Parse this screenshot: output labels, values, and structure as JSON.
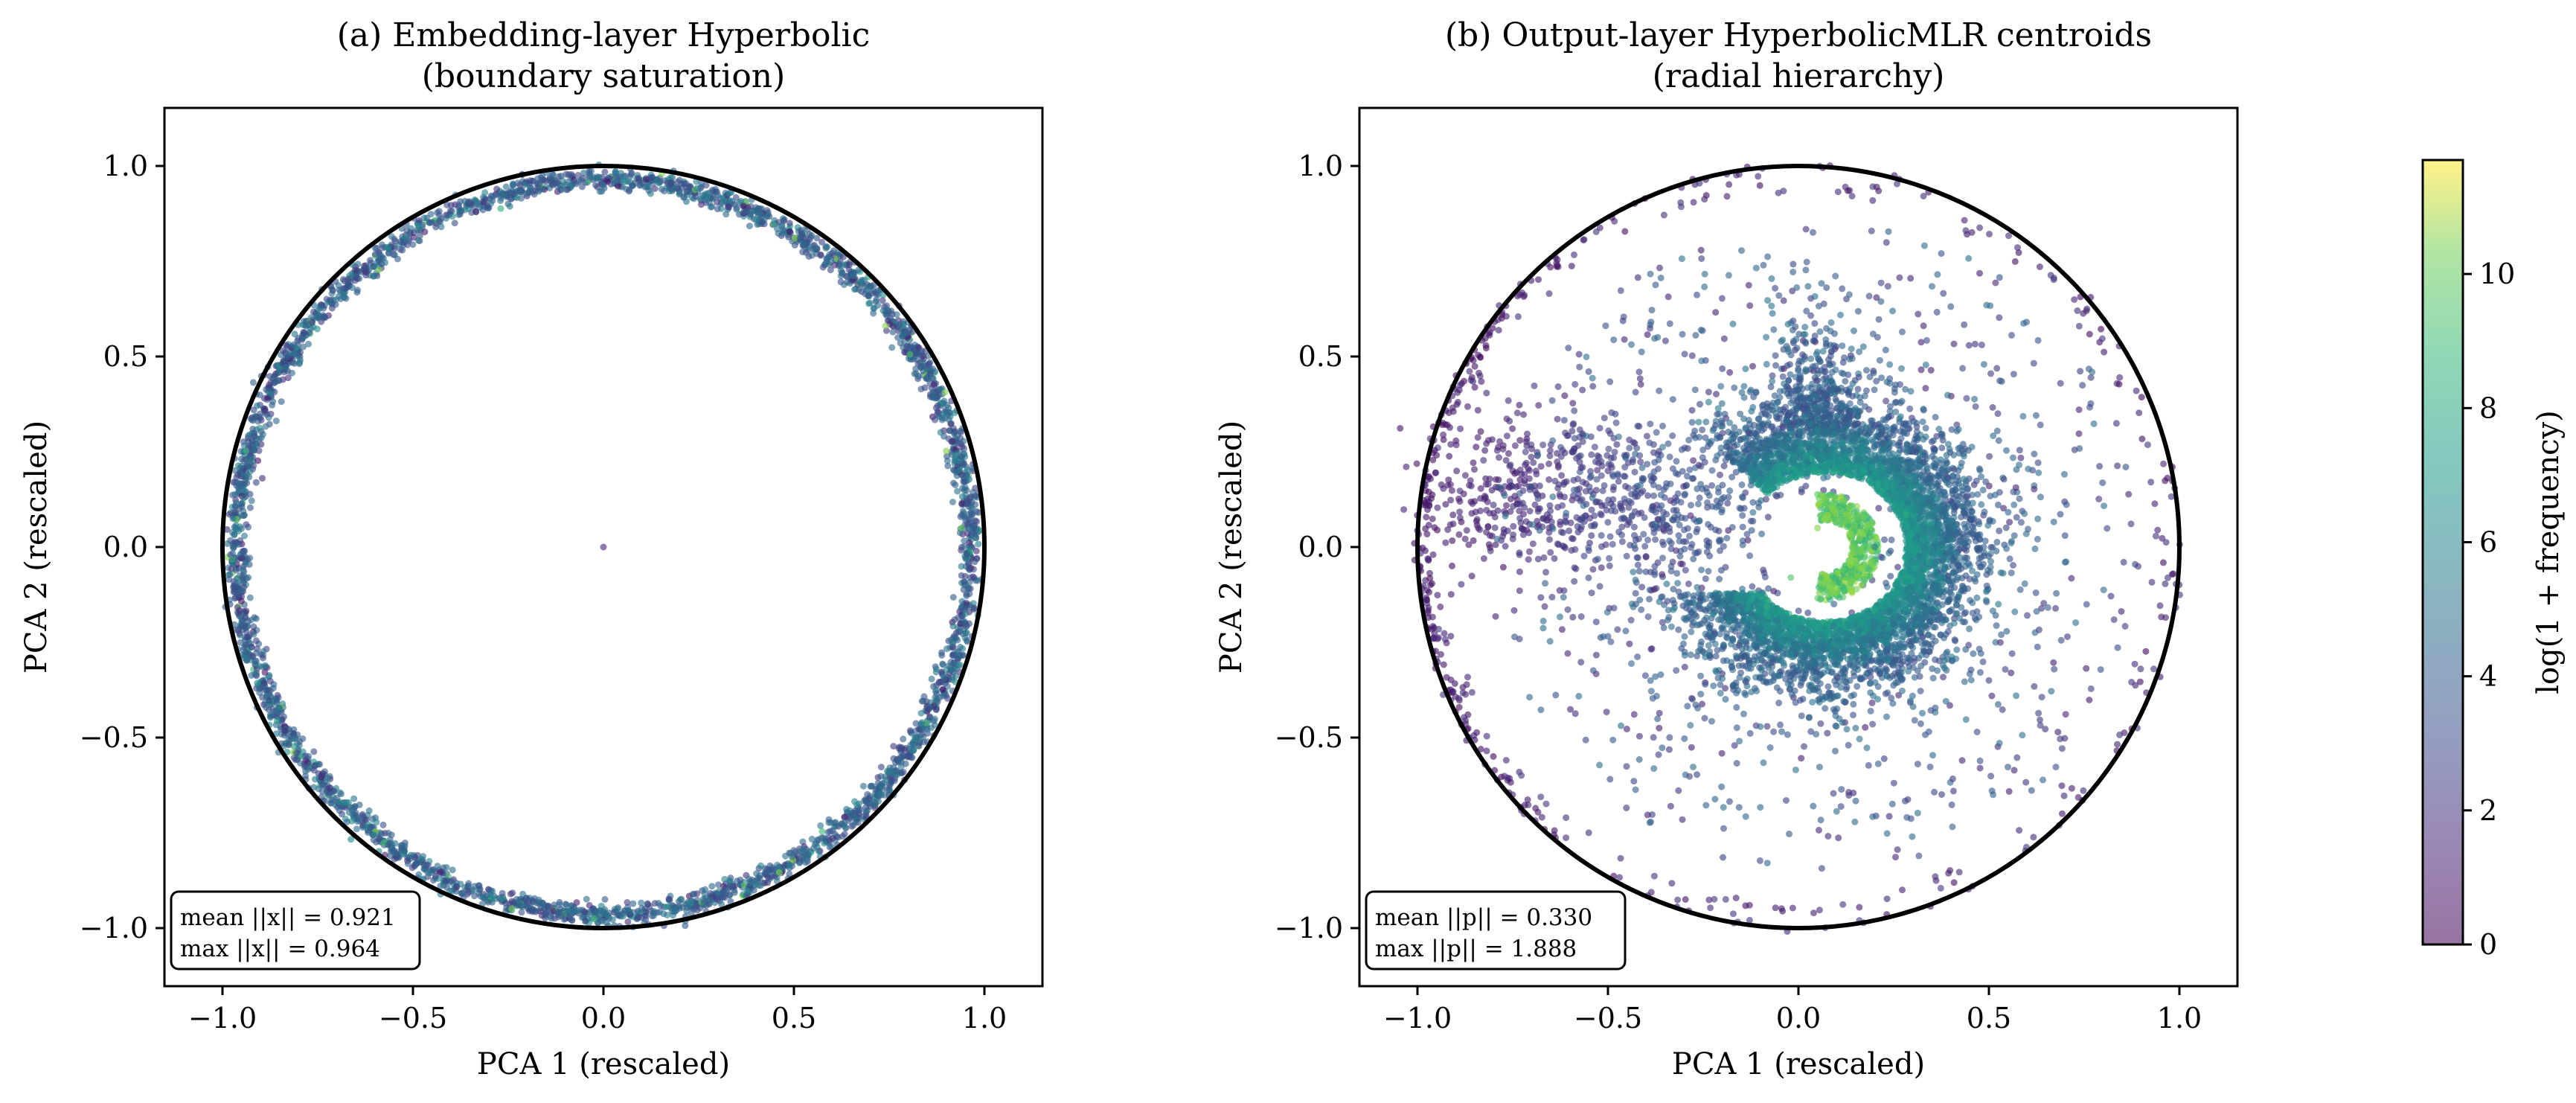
{
  "figure": {
    "colorbar": {
      "label": "log(1 + frequency)",
      "range": [
        0,
        11.7
      ],
      "ticks": [
        0,
        2,
        4,
        6,
        8,
        10
      ],
      "colormap": "viridis",
      "alpha": 0.55
    }
  },
  "chart_data": [
    {
      "type": "scatter",
      "title_line1": "(a) Embedding-layer Hyperbolic",
      "title_line2": "(boundary saturation)",
      "xlabel": "PCA 1 (rescaled)",
      "ylabel": "PCA 2 (rescaled)",
      "xlim": [
        -1.15,
        1.15
      ],
      "ylim": [
        -1.15,
        1.15
      ],
      "xticks": [
        -1.0,
        -0.5,
        0.0,
        0.5,
        1.0
      ],
      "yticks": [
        -1.0,
        -0.5,
        0.0,
        0.5,
        1.0
      ],
      "xtick_labels": [
        "−1.0",
        "−0.5",
        "0.0",
        "0.5",
        "1.0"
      ],
      "ytick_labels": [
        "−1.0",
        "−0.5",
        "0.0",
        "0.5",
        "1.0"
      ],
      "unit_circle": true,
      "stats": [
        "mean ||x|| = 0.921",
        "max ||x|| = 0.964"
      ],
      "distribution": "ring concentrated at radius ≈ 0.96 near boundary; single point at origin",
      "sample_points": [
        {
          "x": 0.0,
          "y": 0.0,
          "c": 1.5
        },
        {
          "x": 0.96,
          "y": 0.0,
          "c": 4.2
        },
        {
          "x": 0.0,
          "y": 0.95,
          "c": 4.0
        },
        {
          "x": -0.97,
          "y": 0.0,
          "c": 4.1
        },
        {
          "x": 0.0,
          "y": -0.96,
          "c": 4.3
        },
        {
          "x": 0.74,
          "y": 0.58,
          "c": 9.5
        },
        {
          "x": 0.94,
          "y": 0.05,
          "c": 9.0
        },
        {
          "x": 0.69,
          "y": -0.67,
          "c": 3.8
        },
        {
          "x": -0.69,
          "y": 0.67,
          "c": 4.4
        },
        {
          "x": -0.66,
          "y": -0.69,
          "c": 4.0
        }
      ]
    },
    {
      "type": "scatter",
      "title_line1": "(b) Output-layer HyperbolicMLR centroids",
      "title_line2": "(radial hierarchy)",
      "xlabel": "PCA 1 (rescaled)",
      "ylabel": "PCA 2 (rescaled)",
      "xlim": [
        -1.15,
        1.15
      ],
      "ylim": [
        -1.15,
        1.15
      ],
      "xticks": [
        -1.0,
        -0.5,
        0.0,
        0.5,
        1.0
      ],
      "yticks": [
        -1.0,
        -0.5,
        0.0,
        0.5,
        1.0
      ],
      "xtick_labels": [
        "−1.0",
        "−0.5",
        "0.0",
        "0.5",
        "1.0"
      ],
      "ytick_labels": [
        "−1.0",
        "−0.5",
        "0.0",
        "0.5",
        "1.0"
      ],
      "unit_circle": true,
      "stats": [
        "mean ||p|| = 0.330",
        "max ||p|| = 1.888"
      ],
      "distribution": "dense C-shaped cluster around (0.1, 0.0) with high-frequency points near center; sparse low-frequency points spreading left toward (-0.85, 0.15) and along the boundary",
      "sample_points": [
        {
          "x": 0.05,
          "y": 0.05,
          "c": 9.5
        },
        {
          "x": 0.12,
          "y": 0.12,
          "c": 9.0
        },
        {
          "x": -0.02,
          "y": -0.08,
          "c": 8.5
        },
        {
          "x": 0.2,
          "y": 0.0,
          "c": 5.0
        },
        {
          "x": 0.05,
          "y": 0.25,
          "c": 4.5
        },
        {
          "x": -0.1,
          "y": -0.25,
          "c": 4.5
        },
        {
          "x": -0.75,
          "y": 0.2,
          "c": 1.0
        },
        {
          "x": -0.85,
          "y": 0.12,
          "c": 0.8
        },
        {
          "x": -0.5,
          "y": 0.2,
          "c": 1.5
        },
        {
          "x": 0.5,
          "y": -0.35,
          "c": 2.5
        }
      ]
    }
  ]
}
